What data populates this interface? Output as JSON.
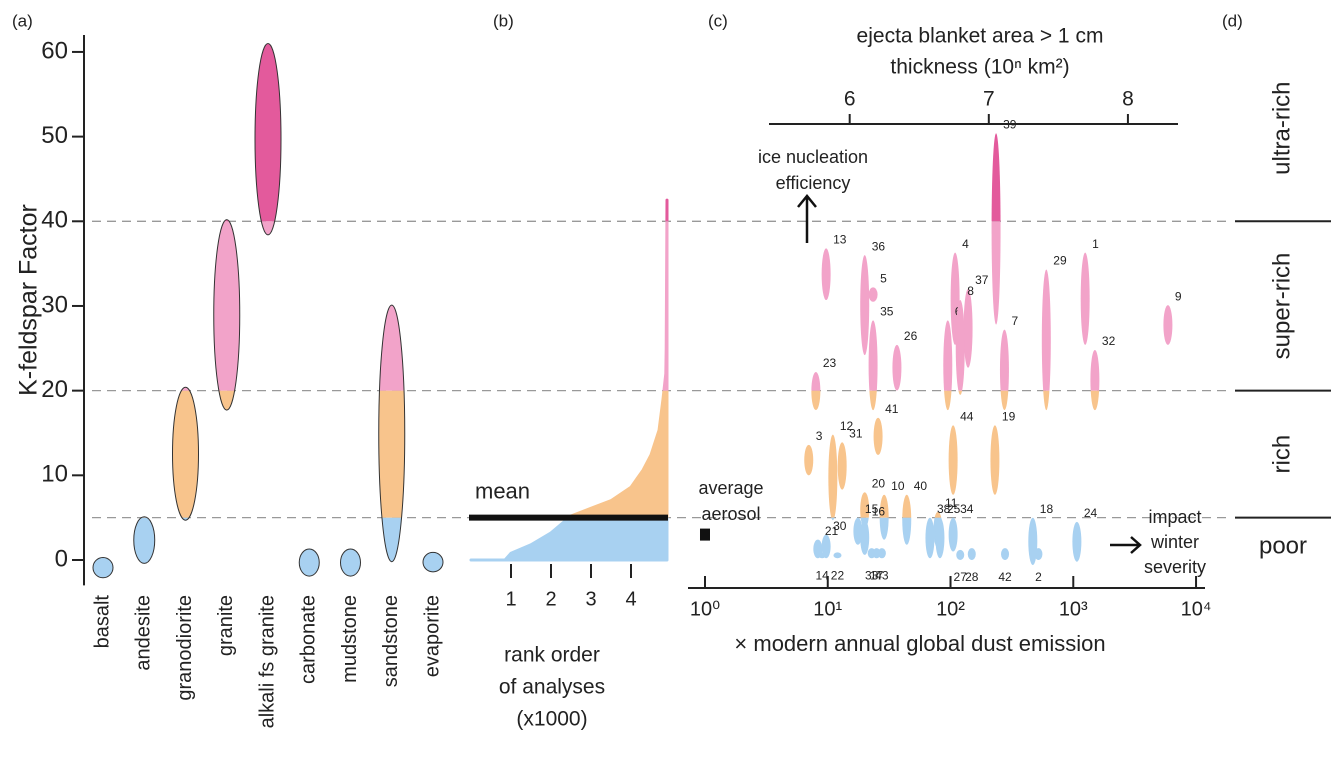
{
  "chart_data": [
    {
      "type": "range",
      "panel_label": "(a)",
      "ylabel": "K-feldspar Factor",
      "categories": [
        "basalt",
        "andesite",
        "granodiorite",
        "granite",
        "alkali fs granite",
        "carbonate",
        "mudstone",
        "sandstone",
        "evaporite"
      ],
      "low": [
        -2.1,
        -0.4,
        4.7,
        17.7,
        38.4,
        -1.9,
        -1.9,
        -0.2,
        -1.4
      ],
      "high": [
        0.3,
        5.1,
        20.4,
        40.2,
        61,
        1.3,
        1.3,
        30.1,
        0.9
      ],
      "ylim": [
        -3,
        62
      ],
      "yticks": [
        0,
        10,
        20,
        30,
        40,
        50,
        60
      ]
    },
    {
      "type": "area",
      "panel_label": "(b)",
      "xlabel": [
        "rank order",
        "of analyses",
        "(x1000)"
      ],
      "x": [
        0,
        0.85,
        1.0,
        1.5,
        2.0,
        2.5,
        3.0,
        3.5,
        4.0,
        4.3,
        4.5,
        4.7,
        4.8,
        4.87,
        4.88,
        4.9
      ],
      "y": [
        0,
        0,
        0.8,
        1.8,
        3.2,
        5.2,
        6.1,
        7.0,
        8.6,
        10.6,
        12.4,
        15.3,
        19,
        22,
        25,
        42.5
      ],
      "xlim": [
        0,
        4.9
      ],
      "xticks": [
        1,
        2,
        3,
        4
      ],
      "mean": 5,
      "mean_label": "mean"
    },
    {
      "type": "range-scatter",
      "panel_label": "(c)",
      "xscale": "log",
      "xlabel": "× modern annual global dust emission",
      "x2label": [
        "ejecta blanket area > 1 cm",
        "thickness (10ⁿ km²)"
      ],
      "xlim": [
        0.727,
        11830
      ],
      "xticks": [
        {
          "value": 1,
          "label": "10⁰"
        },
        {
          "value": 10,
          "label": "10¹"
        },
        {
          "value": 100,
          "label": "10²"
        },
        {
          "value": 1000,
          "label": "10³"
        },
        {
          "value": 10000,
          "label": "10⁴"
        }
      ],
      "x2lim": [
        5.42,
        8.36
      ],
      "x2ticks": [
        6,
        7,
        8
      ],
      "labels": [
        "39",
        "13",
        "36",
        "5",
        "4",
        "6",
        "37",
        "8",
        "29",
        "1",
        "9",
        "26",
        "23",
        "35",
        "7",
        "32",
        "3",
        "31",
        "12",
        "41",
        "44",
        "19",
        "20",
        "10",
        "40",
        "11",
        "18",
        "24",
        "30",
        "21",
        "14",
        "22",
        "15",
        "16",
        "33",
        "43",
        "17",
        "38",
        "25",
        "34",
        "28",
        "27",
        "42",
        "2"
      ],
      "x": [
        235,
        9.7,
        20,
        23.4,
        109,
        95,
        139,
        120,
        603,
        1250,
        5900,
        36.6,
        8.0,
        23.4,
        275,
        1500,
        7.0,
        13.1,
        11,
        25.7,
        105,
        230,
        20,
        28.8,
        44,
        79,
        468,
        1070,
        9.7,
        8.3,
        9,
        12,
        17.6,
        20,
        22.8,
        27.6,
        25,
        68,
        82,
        105,
        149,
        120,
        278,
        520
      ],
      "low": [
        27.8,
        30.7,
        24.2,
        30.5,
        25.4,
        17.7,
        22.7,
        19.5,
        17.7,
        25.4,
        25.4,
        20,
        17.7,
        17.7,
        17.7,
        17.7,
        10,
        8.3,
        4.7,
        12.4,
        7.7,
        7.7,
        3.8,
        2.4,
        1.8,
        1.4,
        -0.6,
        -0.2,
        0.2,
        0.2,
        0.2,
        0.2,
        1.8,
        0.6,
        0.2,
        0.2,
        0.2,
        0.2,
        0.2,
        1,
        0,
        0,
        0,
        0
      ],
      "high": [
        50.4,
        36.8,
        36,
        32.2,
        36.3,
        28.3,
        32,
        30.7,
        34.3,
        36.3,
        30.1,
        25.4,
        22.2,
        28.3,
        27.2,
        24.8,
        13.6,
        13.9,
        14.8,
        16.8,
        15.9,
        15.9,
        8,
        7.7,
        7.7,
        5.7,
        5,
        4.5,
        3,
        2.4,
        0.9,
        0.9,
        5,
        4.7,
        1.4,
        1.4,
        1.4,
        5,
        5,
        5,
        1.4,
        1.2,
        1.4,
        1.4
      ],
      "aerosol_label": [
        "average",
        "aerosol"
      ],
      "aerosol_x": 1,
      "aerosol_y": 3,
      "ice_label": [
        "ice nucleation",
        "efficiency"
      ],
      "winter_label": [
        "impact",
        "winter",
        "severity"
      ]
    },
    {
      "type": "classes",
      "panel_label": "(d)",
      "names": [
        "poor",
        "rich",
        "super-rich",
        "ultra-rich"
      ],
      "boundaries": [
        5,
        20,
        40
      ],
      "colors": [
        "#a8d1f1",
        "#f8c48c",
        "#f2a3c9",
        "#e35a9c"
      ]
    }
  ]
}
